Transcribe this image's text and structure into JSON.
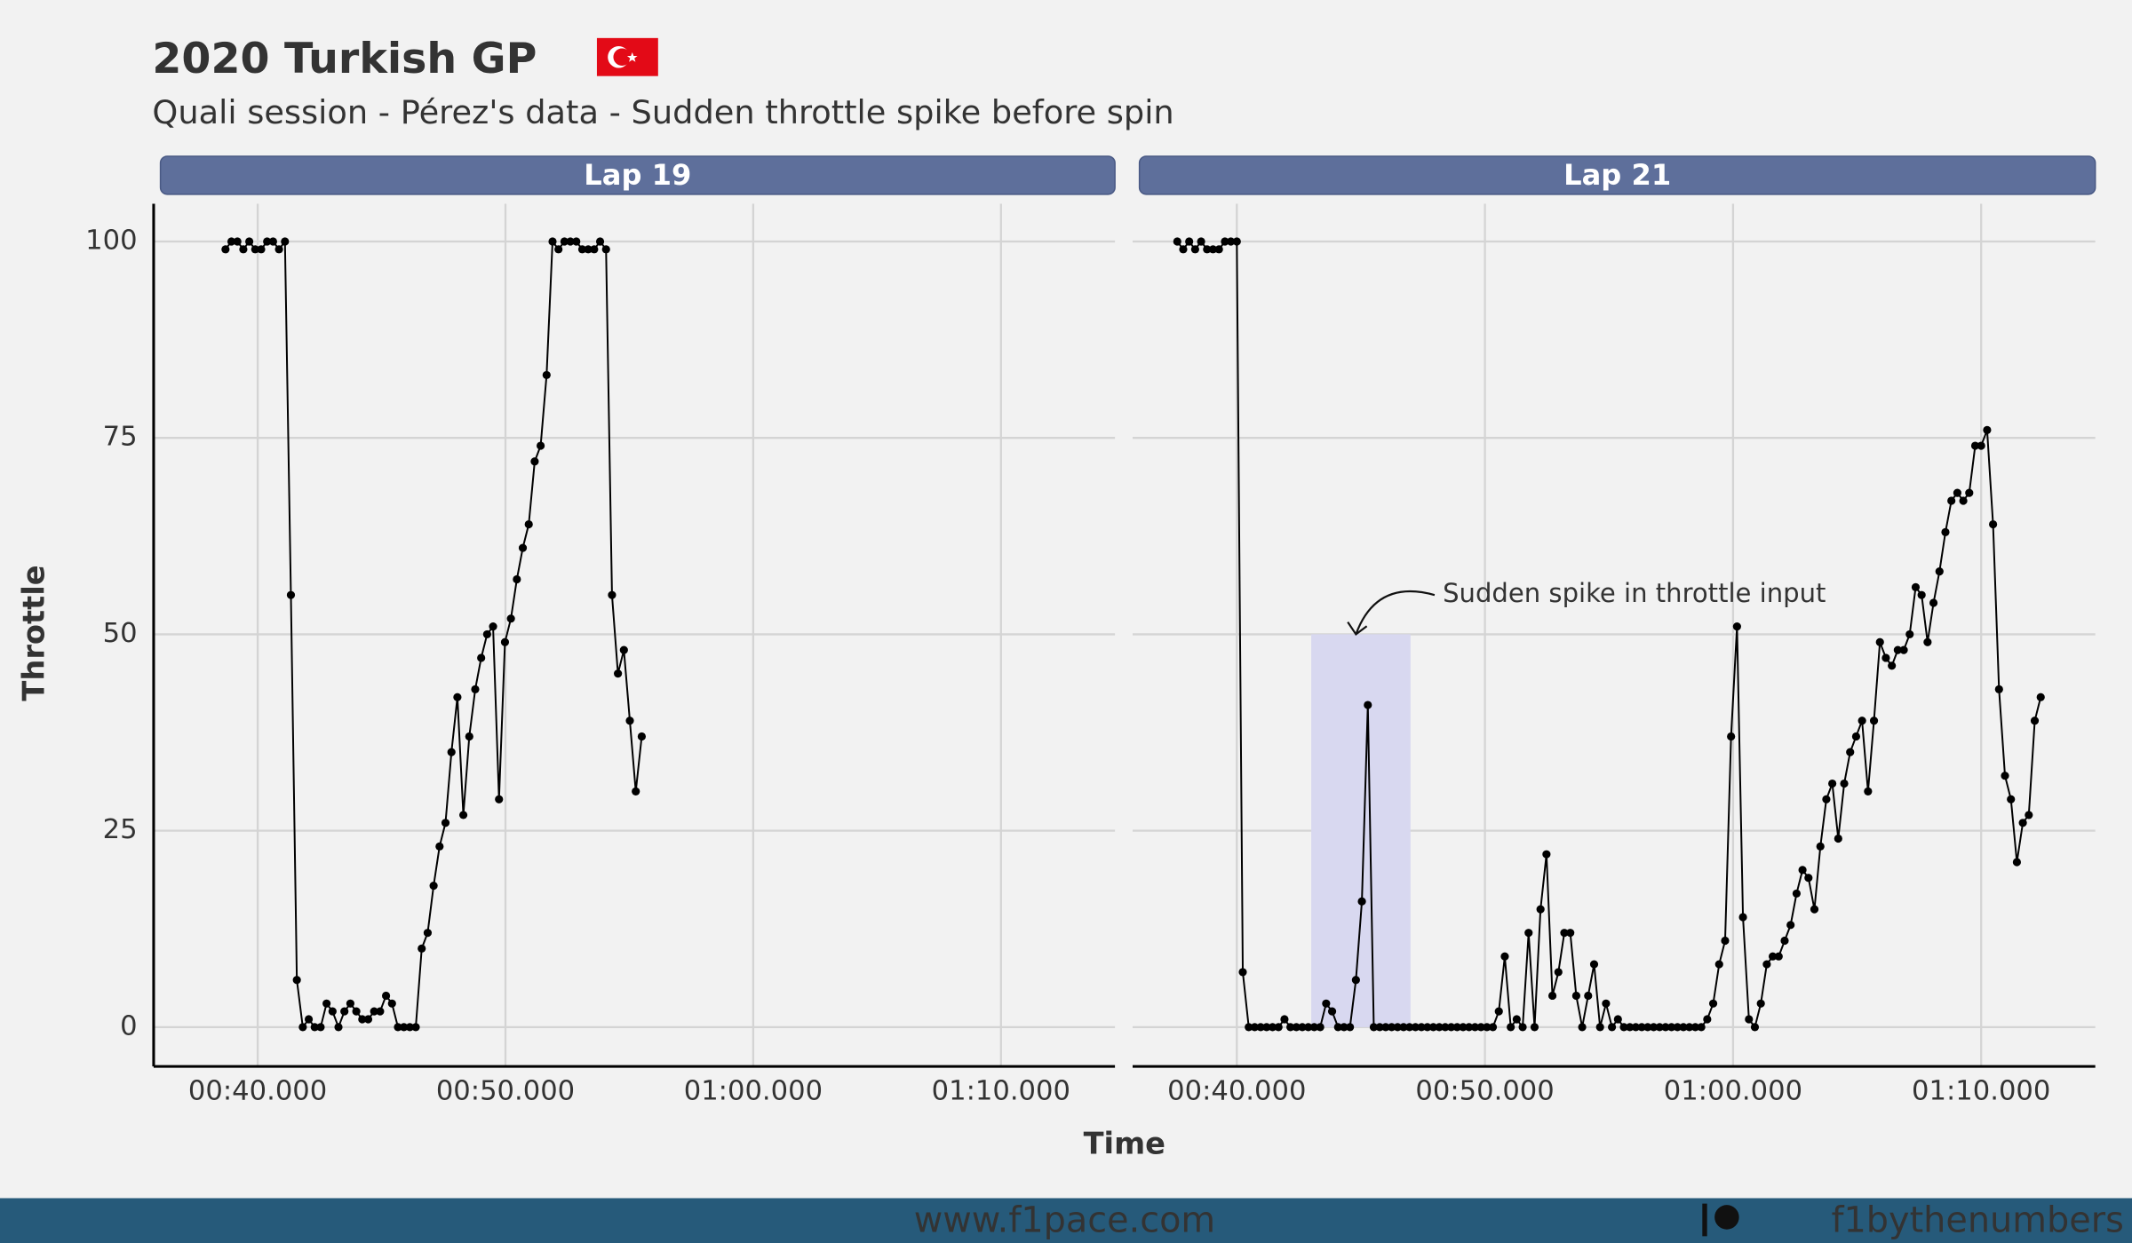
{
  "figure": {
    "title": "2020 Turkish GP",
    "subtitle": "Quali session - Pérez's data - Sudden throttle spike before spin",
    "xlabel": "Time",
    "ylabel": "Throttle"
  },
  "footer": {
    "left": "www.f1pace.com",
    "right": "f1bythenumbers"
  },
  "chart_data": [
    {
      "type": "line",
      "title": "Lap 19",
      "color": "#000000",
      "grid": true,
      "xlim": [
        35.8,
        74.6
      ],
      "ylim": [
        -5,
        104.8
      ],
      "xticks": [
        {
          "value": 40,
          "label": "00:40.000"
        },
        {
          "value": 50,
          "label": "00:50.000"
        },
        {
          "value": 60,
          "label": "01:00.000"
        },
        {
          "value": 70,
          "label": "01:10.000"
        }
      ],
      "yticks": [
        0,
        25,
        50,
        75,
        100
      ],
      "x": [
        38.7,
        38.94,
        39.18,
        39.42,
        39.66,
        39.9,
        40.14,
        40.38,
        40.62,
        40.86,
        41.1,
        41.34,
        41.58,
        41.82,
        42.06,
        42.3,
        42.54,
        42.78,
        43.02,
        43.26,
        43.5,
        43.74,
        43.98,
        44.22,
        44.46,
        44.7,
        44.94,
        45.18,
        45.42,
        45.66,
        45.9,
        46.14,
        46.38,
        46.62,
        46.86,
        47.1,
        47.34,
        47.58,
        47.82,
        48.06,
        48.3,
        48.54,
        48.78,
        49.02,
        49.26,
        49.5,
        49.74,
        49.98,
        50.22,
        50.46,
        50.7,
        50.94,
        51.18,
        51.42,
        51.66,
        51.9,
        52.14,
        52.38,
        52.62,
        52.86,
        53.1,
        53.34,
        53.58,
        53.82,
        54.06,
        54.3,
        54.54,
        54.78,
        55.02,
        55.26,
        55.5
      ],
      "values": [
        99,
        100,
        100,
        99,
        100,
        99,
        99,
        100,
        100,
        99,
        100,
        55,
        6,
        0,
        1,
        0,
        0,
        3,
        2,
        0,
        2,
        3,
        2,
        1,
        1,
        2,
        2,
        4,
        3,
        0,
        0,
        0,
        0,
        10,
        12,
        18,
        23,
        26,
        35,
        42,
        27,
        37,
        43,
        47,
        50,
        51,
        29,
        49,
        52,
        57,
        61,
        64,
        72,
        74,
        83,
        100,
        99,
        100,
        100,
        100,
        99,
        99,
        99,
        100,
        99,
        55,
        45,
        48,
        39,
        30,
        37
      ]
    },
    {
      "type": "line",
      "title": "Lap 21",
      "color": "#000000",
      "grid": true,
      "xlim": [
        35.8,
        74.6
      ],
      "ylim": [
        -5,
        104.8
      ],
      "xticks": [
        {
          "value": 40,
          "label": "00:40.000"
        },
        {
          "value": 50,
          "label": "00:50.000"
        },
        {
          "value": 60,
          "label": "01:00.000"
        },
        {
          "value": 70,
          "label": "01:10.000"
        }
      ],
      "yticks": [
        0,
        25,
        50,
        75,
        100
      ],
      "highlight": {
        "x": [
          43,
          47
        ],
        "y": [
          0,
          50
        ],
        "color": "#d8d8f0"
      },
      "annotation": {
        "text": "Sudden spike in throttle input",
        "x": 48.3,
        "y": 55,
        "arrow_x": 44.8,
        "arrow_y": 50
      },
      "x": [
        37.6,
        37.84,
        38.08,
        38.32,
        38.56,
        38.8,
        39.04,
        39.28,
        39.52,
        39.76,
        40.0,
        40.24,
        40.48,
        40.72,
        40.96,
        41.2,
        41.44,
        41.68,
        41.92,
        42.16,
        42.4,
        42.64,
        42.88,
        43.12,
        43.36,
        43.6,
        43.84,
        44.08,
        44.32,
        44.56,
        44.8,
        45.04,
        45.28,
        45.52,
        45.76,
        46.0,
        46.24,
        46.48,
        46.72,
        46.96,
        47.2,
        47.44,
        47.68,
        47.92,
        48.16,
        48.4,
        48.64,
        48.88,
        49.12,
        49.36,
        49.6,
        49.84,
        50.08,
        50.32,
        50.56,
        50.8,
        51.04,
        51.28,
        51.52,
        51.76,
        52.0,
        52.24,
        52.48,
        52.72,
        52.96,
        53.2,
        53.44,
        53.68,
        53.92,
        54.16,
        54.4,
        54.64,
        54.88,
        55.12,
        55.36,
        55.6,
        55.84,
        56.08,
        56.32,
        56.56,
        56.8,
        57.04,
        57.28,
        57.52,
        57.76,
        58.0,
        58.24,
        58.48,
        58.72,
        58.96,
        59.2,
        59.44,
        59.68,
        59.92,
        60.16,
        60.4,
        60.64,
        60.88,
        61.12,
        61.36,
        61.6,
        61.84,
        62.08,
        62.32,
        62.56,
        62.8,
        63.04,
        63.28,
        63.52,
        63.76,
        64.0,
        64.24,
        64.48,
        64.72,
        64.96,
        65.2,
        65.44,
        65.68,
        65.92,
        66.16,
        66.4,
        66.64,
        66.88,
        67.12,
        67.36,
        67.6,
        67.84,
        68.08,
        68.32,
        68.56,
        68.8,
        69.04,
        69.28,
        69.52,
        69.76,
        70.0,
        70.24,
        70.48,
        70.72,
        70.96,
        71.2,
        71.44,
        71.68,
        71.92,
        72.16,
        72.4
      ],
      "values": [
        100,
        99,
        100,
        99,
        100,
        99,
        99,
        99,
        100,
        100,
        100,
        7,
        0,
        0,
        0,
        0,
        0,
        0,
        1,
        0,
        0,
        0,
        0,
        0,
        0,
        3,
        2,
        0,
        0,
        0,
        6,
        16,
        41,
        0,
        0,
        0,
        0,
        0,
        0,
        0,
        0,
        0,
        0,
        0,
        0,
        0,
        0,
        0,
        0,
        0,
        0,
        0,
        0,
        0,
        2,
        9,
        0,
        1,
        0,
        12,
        0,
        15,
        22,
        4,
        7,
        12,
        12,
        4,
        0,
        4,
        8,
        0,
        3,
        0,
        1,
        0,
        0,
        0,
        0,
        0,
        0,
        0,
        0,
        0,
        0,
        0,
        0,
        0,
        0,
        1,
        3,
        8,
        11,
        37,
        51,
        14,
        1,
        0,
        3,
        8,
        9,
        9,
        11,
        13,
        17,
        20,
        19,
        15,
        23,
        29,
        31,
        24,
        31,
        35,
        37,
        39,
        30,
        39,
        49,
        47,
        46,
        48,
        48,
        50,
        56,
        55,
        49,
        54,
        58,
        63,
        67,
        68,
        67,
        68,
        74,
        74,
        76,
        64,
        43,
        32,
        29,
        21,
        26,
        27,
        39,
        42
      ]
    }
  ]
}
